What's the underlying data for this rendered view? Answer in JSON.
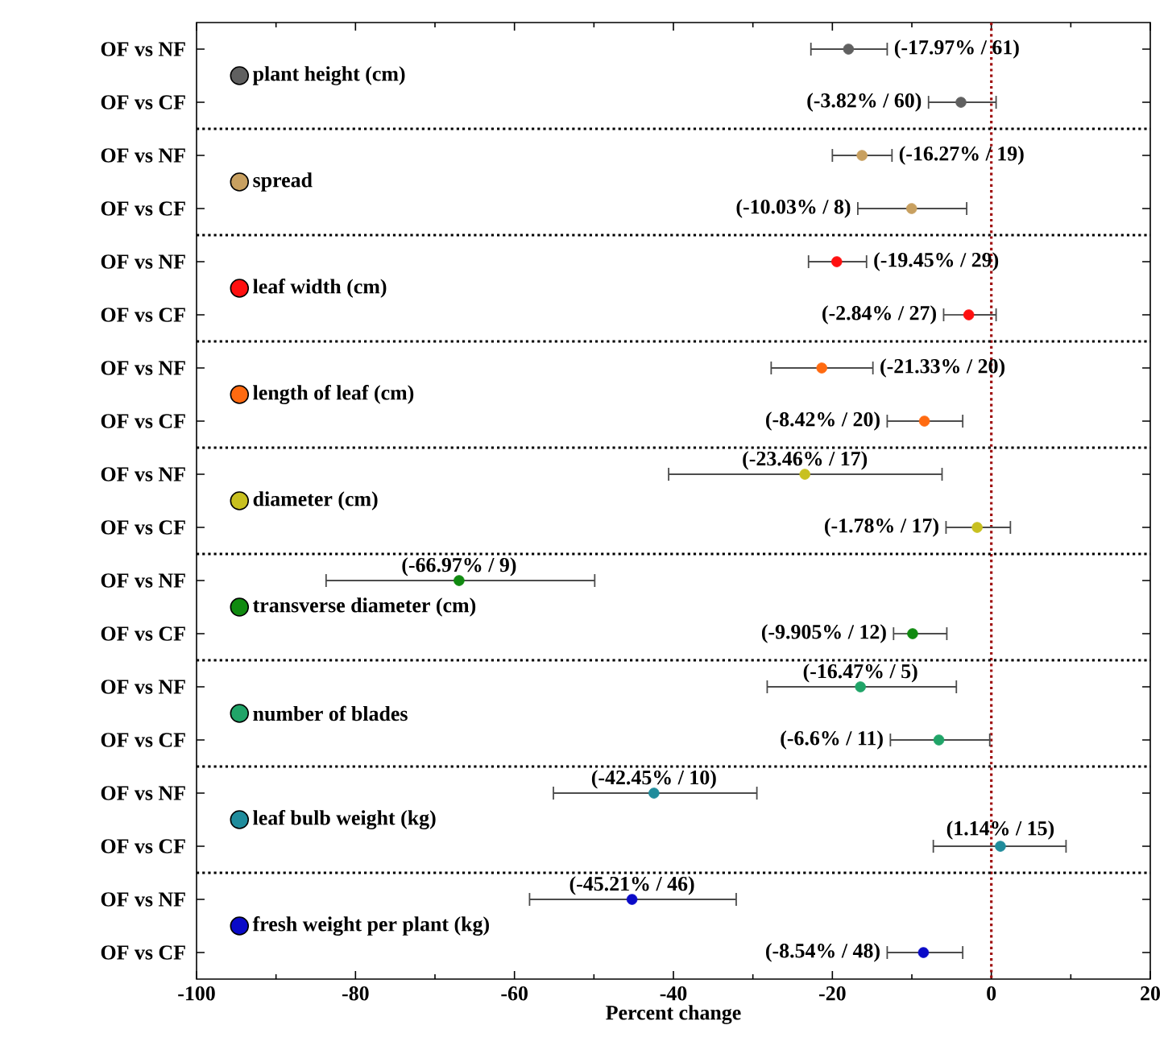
{
  "chart_data": {
    "type": "scatter",
    "orientation": "horizontal",
    "xlabel": "Percent change",
    "marker": "circle",
    "legend": "left",
    "categories": [
      "OF vs NF",
      "OF vs CF",
      "OF vs NF",
      "OF vs CF",
      "OF vs NF",
      "OF vs CF",
      "OF vs NF",
      "OF vs CF",
      "OF vs NF",
      "OF vs CF",
      "OF vs NF",
      "OF vs CF",
      "OF vs NF",
      "OF vs CF",
      "OF vs NF",
      "OF vs CF",
      "OF vs NF",
      "OF vs CF"
    ],
    "xlim": [
      -100,
      20
    ],
    "xticks": [
      -100,
      -80,
      -60,
      -40,
      -20,
      0,
      20
    ],
    "ref_lines": [
      {
        "axis": "x",
        "value": 0,
        "color": "#a01010",
        "line_style": "dotted"
      }
    ],
    "series": [
      {
        "name": "plant height (cm)",
        "color": "#606060",
        "values": [
          -17.97,
          -3.82,
          null,
          null,
          null,
          null,
          null,
          null,
          null,
          null,
          null,
          null,
          null,
          null,
          null,
          null,
          null,
          null
        ],
        "errors": [
          [
            -22.7,
            -13.1
          ],
          [
            -7.9,
            0.6
          ],
          null,
          null,
          null,
          null,
          null,
          null,
          null,
          null,
          null,
          null,
          null,
          null,
          null,
          null,
          null,
          null
        ],
        "value_labels": [
          "(-17.97% / 61)",
          "(-3.82% / 60)",
          null,
          null,
          null,
          null,
          null,
          null,
          null,
          null,
          null,
          null,
          null,
          null,
          null,
          null,
          null,
          null
        ]
      },
      {
        "name": "spread",
        "color": "#c8a060",
        "values": [
          null,
          null,
          -16.27,
          -10.03,
          null,
          null,
          null,
          null,
          null,
          null,
          null,
          null,
          null,
          null,
          null,
          null,
          null,
          null
        ],
        "errors": [
          null,
          null,
          [
            -20.0,
            -12.5
          ],
          [
            -16.8,
            -3.1
          ],
          null,
          null,
          null,
          null,
          null,
          null,
          null,
          null,
          null,
          null,
          null,
          null,
          null,
          null
        ],
        "value_labels": [
          null,
          null,
          "(-16.27% / 19)",
          "(-10.03% / 8)",
          null,
          null,
          null,
          null,
          null,
          null,
          null,
          null,
          null,
          null,
          null,
          null,
          null,
          null
        ]
      },
      {
        "name": "leaf width (cm)",
        "color": "#ff1010",
        "values": [
          null,
          null,
          null,
          null,
          -19.45,
          -2.84,
          null,
          null,
          null,
          null,
          null,
          null,
          null,
          null,
          null,
          null,
          null,
          null
        ],
        "errors": [
          null,
          null,
          null,
          null,
          [
            -23.0,
            -15.7
          ],
          [
            -6.0,
            0.6
          ],
          null,
          null,
          null,
          null,
          null,
          null,
          null,
          null,
          null,
          null,
          null,
          null
        ],
        "value_labels": [
          null,
          null,
          null,
          null,
          "(-19.45% / 29)",
          "(-2.84% / 27)",
          null,
          null,
          null,
          null,
          null,
          null,
          null,
          null,
          null,
          null,
          null,
          null
        ]
      },
      {
        "name": "length of leaf (cm)",
        "color": "#ff6a10",
        "values": [
          null,
          null,
          null,
          null,
          null,
          null,
          -21.33,
          -8.42,
          null,
          null,
          null,
          null,
          null,
          null,
          null,
          null,
          null,
          null
        ],
        "errors": [
          null,
          null,
          null,
          null,
          null,
          null,
          [
            -27.7,
            -14.9
          ],
          [
            -13.1,
            -3.6
          ],
          null,
          null,
          null,
          null,
          null,
          null,
          null,
          null,
          null,
          null
        ],
        "value_labels": [
          null,
          null,
          null,
          null,
          null,
          null,
          "(-21.33% / 20)",
          "(-8.42% / 20)",
          null,
          null,
          null,
          null,
          null,
          null,
          null,
          null,
          null,
          null
        ]
      },
      {
        "name": "diameter (cm)",
        "color": "#c8c020",
        "values": [
          null,
          null,
          null,
          null,
          null,
          null,
          null,
          null,
          -23.46,
          -1.78,
          null,
          null,
          null,
          null,
          null,
          null,
          null,
          null
        ],
        "errors": [
          null,
          null,
          null,
          null,
          null,
          null,
          null,
          null,
          [
            -40.6,
            -6.2
          ],
          [
            -5.7,
            2.4
          ],
          null,
          null,
          null,
          null,
          null,
          null,
          null,
          null
        ],
        "value_labels": [
          null,
          null,
          null,
          null,
          null,
          null,
          null,
          null,
          "(-23.46% / 17)",
          "(-1.78% / 17)",
          null,
          null,
          null,
          null,
          null,
          null,
          null,
          null
        ]
      },
      {
        "name": "transverse diameter (cm)",
        "color": "#108a10",
        "values": [
          null,
          null,
          null,
          null,
          null,
          null,
          null,
          null,
          null,
          null,
          -66.97,
          -9.905,
          null,
          null,
          null,
          null,
          null,
          null
        ],
        "errors": [
          null,
          null,
          null,
          null,
          null,
          null,
          null,
          null,
          null,
          null,
          [
            -83.7,
            -49.9
          ],
          [
            -12.3,
            -5.6
          ],
          null,
          null,
          null,
          null,
          null,
          null
        ],
        "value_labels": [
          null,
          null,
          null,
          null,
          null,
          null,
          null,
          null,
          null,
          null,
          "(-66.97% / 9)",
          "(-9.905% / 12)",
          null,
          null,
          null,
          null,
          null,
          null
        ]
      },
      {
        "name": "number of blades",
        "color": "#20a468",
        "values": [
          null,
          null,
          null,
          null,
          null,
          null,
          null,
          null,
          null,
          null,
          null,
          null,
          -16.47,
          -6.6,
          null,
          null,
          null,
          null
        ],
        "errors": [
          null,
          null,
          null,
          null,
          null,
          null,
          null,
          null,
          null,
          null,
          null,
          null,
          [
            -28.2,
            -4.4
          ],
          [
            -12.7,
            -0.2
          ],
          null,
          null,
          null,
          null
        ],
        "value_labels": [
          null,
          null,
          null,
          null,
          null,
          null,
          null,
          null,
          null,
          null,
          null,
          null,
          "(-16.47% / 5)",
          "(-6.6% / 11)",
          null,
          null,
          null,
          null
        ]
      },
      {
        "name": "leaf bulb weight (kg)",
        "color": "#208c9c",
        "values": [
          null,
          null,
          null,
          null,
          null,
          null,
          null,
          null,
          null,
          null,
          null,
          null,
          null,
          null,
          -42.45,
          1.14,
          null,
          null
        ],
        "errors": [
          null,
          null,
          null,
          null,
          null,
          null,
          null,
          null,
          null,
          null,
          null,
          null,
          null,
          null,
          [
            -55.1,
            -29.5
          ],
          [
            -7.3,
            9.4
          ],
          null,
          null
        ],
        "value_labels": [
          null,
          null,
          null,
          null,
          null,
          null,
          null,
          null,
          null,
          null,
          null,
          null,
          null,
          null,
          "(-42.45% / 10)",
          "(1.14% / 15)",
          null,
          null
        ]
      },
      {
        "name": "fresh weight per plant (kg)",
        "color": "#0a0ac8",
        "values": [
          null,
          null,
          null,
          null,
          null,
          null,
          null,
          null,
          null,
          null,
          null,
          null,
          null,
          null,
          null,
          null,
          -45.21,
          -8.54
        ],
        "errors": [
          null,
          null,
          null,
          null,
          null,
          null,
          null,
          null,
          null,
          null,
          null,
          null,
          null,
          null,
          null,
          null,
          [
            -58.1,
            -32.1
          ],
          [
            -13.1,
            -3.6
          ]
        ],
        "value_labels": [
          null,
          null,
          null,
          null,
          null,
          null,
          null,
          null,
          null,
          null,
          null,
          null,
          null,
          null,
          null,
          null,
          "(-45.21% / 46)",
          "(-8.54% / 48)"
        ]
      }
    ]
  }
}
